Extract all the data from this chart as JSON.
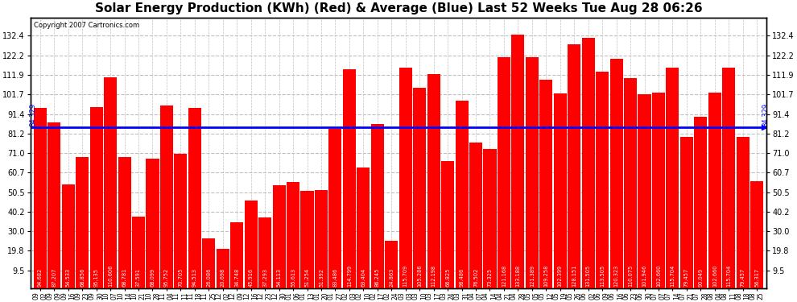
{
  "title": "Solar Energy Production (KWh) (Red) & Average (Blue) Last 52 Weeks Tue Aug 28 06:26",
  "copyright": "Copyright 2007 Cartronics.com",
  "average_value": 84.329,
  "bar_color": "#ff0000",
  "avg_line_color": "#0000ff",
  "background_color": "#ffffff",
  "plot_bg_color": "#ffffff",
  "ylim_min": 0,
  "ylim_max": 142,
  "yticks": [
    9.5,
    19.8,
    30.0,
    40.2,
    50.5,
    60.7,
    71.0,
    81.2,
    91.4,
    101.7,
    111.9,
    122.2,
    132.4
  ],
  "categories": [
    "09-02",
    "09-09",
    "09-16",
    "09-23",
    "09-30",
    "10-07",
    "10-14",
    "10-21",
    "10-28",
    "11-04",
    "11-11",
    "11-18",
    "11-25",
    "12-02",
    "12-09",
    "12-16",
    "12-23",
    "12-30",
    "01-06",
    "01-13",
    "01-20",
    "01-27",
    "02-03",
    "02-10",
    "02-17",
    "02-24",
    "03-03",
    "03-10",
    "03-17",
    "03-24",
    "03-31",
    "04-07",
    "04-14",
    "04-21",
    "04-28",
    "05-05",
    "05-12",
    "05-19",
    "05-26",
    "06-02",
    "06-09",
    "06-16",
    "06-23",
    "06-30",
    "07-07",
    "07-14",
    "07-21",
    "07-28",
    "08-04",
    "08-11",
    "08-18",
    "08-25"
  ],
  "values": [
    94.682,
    87.207,
    54.533,
    68.856,
    95.135,
    110.606,
    68.781,
    37.591,
    68.099,
    95.752,
    70.705,
    94.513,
    26.086,
    20.698,
    34.748,
    45.916,
    37.293,
    54.113,
    55.613,
    51.254,
    51.392,
    83.486,
    114.799,
    63.404,
    86.245,
    24.863,
    115.709,
    105.286,
    112.198,
    66.825,
    98.486,
    76.502,
    73.325,
    121.168,
    133.188,
    121.389,
    109.258,
    102.399,
    128.151,
    131.505,
    113.505,
    120.323,
    110.075,
    101.946,
    102.66,
    115.704,
    79.457,
    90.049,
    102.66,
    115.704,
    79.457,
    56.317
  ],
  "value_labels": [
    "94.682",
    "87.207",
    "54.533",
    "68.856",
    "95.135",
    "110.606",
    "68.781",
    "37.591",
    "68.099",
    "95.752",
    "70.705",
    "94.513",
    "26.086",
    "20.698",
    "34.748",
    "45.916",
    "37.293",
    "54.113",
    "55.613",
    "51.254",
    "51.392",
    "83.486",
    "114.799",
    "63.404",
    "86.245",
    "24.863",
    "115.709",
    "105.286",
    "112.198",
    "66.825",
    "98.486",
    "76.502",
    "73.325",
    "121.168",
    "133.188",
    "121.389",
    "109.258",
    "102.399",
    "128.151",
    "131.505",
    "113.505",
    "120.323",
    "110.075",
    "101.946",
    "102.660",
    "115.704",
    "79.457",
    "90.049",
    "102.660",
    "115.704",
    "79.457",
    "56.317"
  ],
  "grid_color": "#c0c0c0",
  "grid_style": "--",
  "title_fontsize": 11,
  "tick_fontsize": 7,
  "bar_label_fontsize": 4.8,
  "xlabel_fontsize": 5.5
}
